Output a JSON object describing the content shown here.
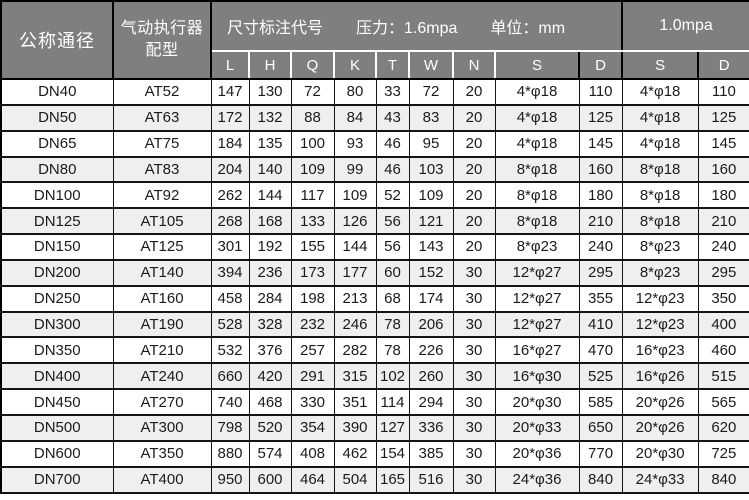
{
  "table": {
    "header": {
      "nominal_diameter": "公称通径",
      "actuator_line1": "气动执行器",
      "actuator_line2": "配型",
      "dimension_code_label": "尺寸标注代号",
      "pressure_label": "压力：1.6mpa",
      "unit_label": "单位：mm",
      "pressure_alt_label": "1.0mpa",
      "sub_columns": [
        "L",
        "H",
        "Q",
        "K",
        "T",
        "W",
        "N",
        "S",
        "D",
        "S",
        "D"
      ]
    },
    "rows": [
      [
        "DN40",
        "AT52",
        "147",
        "130",
        "72",
        "80",
        "33",
        "72",
        "20",
        "4*φ18",
        "110",
        "4*φ18",
        "110"
      ],
      [
        "DN50",
        "AT63",
        "172",
        "132",
        "88",
        "84",
        "43",
        "83",
        "20",
        "4*φ18",
        "125",
        "4*φ18",
        "125"
      ],
      [
        "DN65",
        "AT75",
        "184",
        "135",
        "100",
        "93",
        "46",
        "95",
        "20",
        "4*φ18",
        "145",
        "4*φ18",
        "145"
      ],
      [
        "DN80",
        "AT83",
        "204",
        "140",
        "109",
        "99",
        "46",
        "103",
        "20",
        "8*φ18",
        "160",
        "8*φ18",
        "160"
      ],
      [
        "DN100",
        "AT92",
        "262",
        "144",
        "117",
        "109",
        "52",
        "109",
        "20",
        "8*φ18",
        "180",
        "8*φ18",
        "180"
      ],
      [
        "DN125",
        "AT105",
        "268",
        "168",
        "133",
        "126",
        "56",
        "121",
        "20",
        "8*φ18",
        "210",
        "8*φ18",
        "210"
      ],
      [
        "DN150",
        "AT125",
        "301",
        "192",
        "155",
        "144",
        "56",
        "143",
        "20",
        "8*φ23",
        "240",
        "8*φ23",
        "240"
      ],
      [
        "DN200",
        "AT140",
        "394",
        "236",
        "173",
        "177",
        "60",
        "152",
        "30",
        "12*φ27",
        "295",
        "8*φ23",
        "295"
      ],
      [
        "DN250",
        "AT160",
        "458",
        "284",
        "198",
        "213",
        "68",
        "174",
        "30",
        "12*φ27",
        "355",
        "12*φ23",
        "350"
      ],
      [
        "DN300",
        "AT190",
        "528",
        "328",
        "232",
        "246",
        "78",
        "206",
        "30",
        "12*φ27",
        "410",
        "12*φ23",
        "400"
      ],
      [
        "DN350",
        "AT210",
        "532",
        "376",
        "257",
        "282",
        "78",
        "226",
        "30",
        "16*φ27",
        "470",
        "16*φ23",
        "460"
      ],
      [
        "DN400",
        "AT240",
        "660",
        "420",
        "291",
        "315",
        "102",
        "260",
        "30",
        "16*φ30",
        "525",
        "16*φ26",
        "515"
      ],
      [
        "DN450",
        "AT270",
        "740",
        "468",
        "330",
        "351",
        "114",
        "294",
        "30",
        "20*φ30",
        "585",
        "20*φ26",
        "565"
      ],
      [
        "DN500",
        "AT300",
        "798",
        "520",
        "354",
        "390",
        "127",
        "336",
        "30",
        "20*φ33",
        "650",
        "20*φ26",
        "620"
      ],
      [
        "DN600",
        "AT350",
        "880",
        "574",
        "408",
        "462",
        "154",
        "385",
        "30",
        "20*φ36",
        "770",
        "20*φ30",
        "725"
      ],
      [
        "DN700",
        "AT400",
        "950",
        "600",
        "464",
        "504",
        "165",
        "516",
        "30",
        "24*φ36",
        "840",
        "24*φ33",
        "840"
      ]
    ],
    "colors": {
      "header_bg": "#7f7f7f",
      "header_text": "#ffffff",
      "row_bg": "#ffffff",
      "row_alt_bg": "#efefef",
      "border": "#151515",
      "body_text": "#1b1b1b"
    }
  }
}
